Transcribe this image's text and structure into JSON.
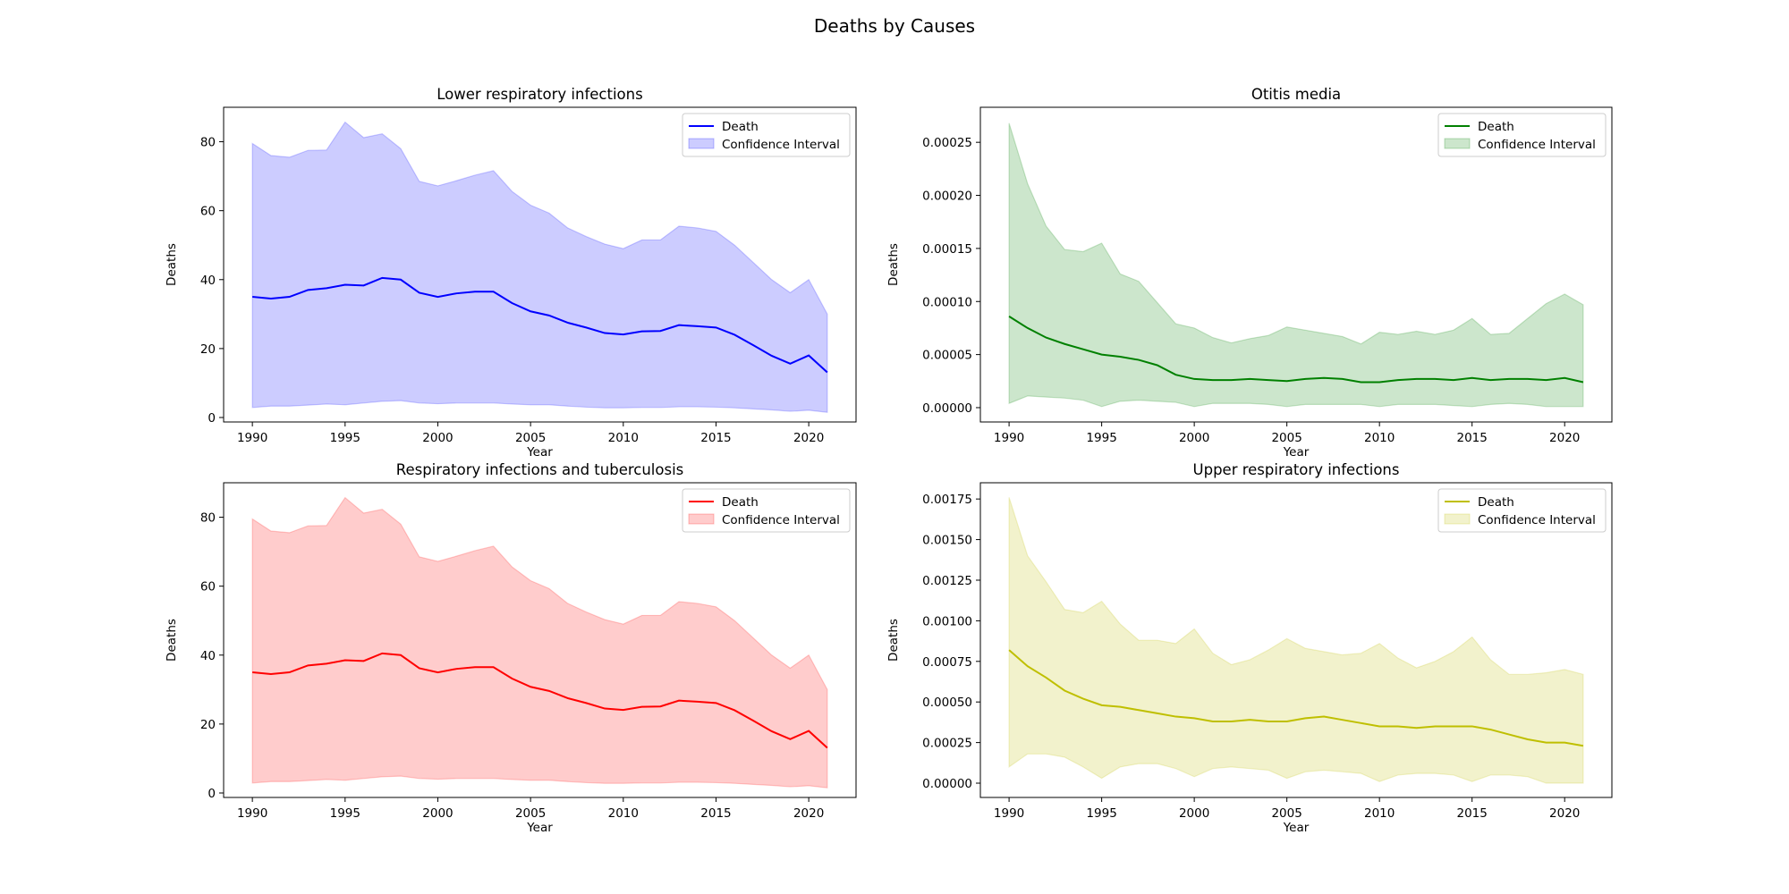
{
  "figure": {
    "title": "Deaths by Causes"
  },
  "chart_data": [
    {
      "type": "line",
      "title": "Lower respiratory infections",
      "xlabel": "Year",
      "ylabel": "Deaths",
      "xlim": [
        1988.45,
        2022.55
      ],
      "ylim": [
        -1.3,
        90
      ],
      "xticks": [
        "1990",
        "1995",
        "2000",
        "2005",
        "2010",
        "2015",
        "2020"
      ],
      "yticks": [
        "0",
        "20",
        "40",
        "60",
        "80"
      ],
      "ytick_values": [
        0,
        20,
        40,
        60,
        80
      ],
      "color": "#0000ff",
      "band_color": "#0000ff",
      "grid": false,
      "legend_position": "top-right",
      "legend": [
        "Death",
        "Confidence Interval"
      ],
      "x": [
        1990,
        1991,
        1992,
        1993,
        1994,
        1995,
        1996,
        1997,
        1998,
        1999,
        2000,
        2001,
        2002,
        2003,
        2004,
        2005,
        2006,
        2007,
        2008,
        2009,
        2010,
        2011,
        2012,
        2013,
        2014,
        2015,
        2016,
        2017,
        2018,
        2019,
        2020,
        2021
      ],
      "series": [
        {
          "name": "Death",
          "values": [
            35,
            34.5,
            35,
            37,
            37.5,
            38.5,
            38.3,
            40.5,
            40,
            36.2,
            35,
            36,
            36.5,
            36.5,
            33.2,
            30.8,
            29.6,
            27.5,
            26.1,
            24.5,
            24.1,
            25,
            25.1,
            26.8,
            26.5,
            26.1,
            24,
            21,
            17.9,
            15.6,
            18,
            13.1
          ]
        },
        {
          "name": "Confidence Interval",
          "lower": [
            2.9,
            3.3,
            3.3,
            3.6,
            3.9,
            3.7,
            4.2,
            4.7,
            4.9,
            4.2,
            4,
            4.2,
            4.2,
            4.2,
            3.9,
            3.7,
            3.7,
            3.3,
            3,
            2.8,
            2.8,
            2.9,
            2.9,
            3.1,
            3.1,
            3,
            2.8,
            2.5,
            2.2,
            1.8,
            2.1,
            1.5
          ],
          "upper": [
            79.5,
            76,
            75.5,
            77.5,
            77.6,
            85.7,
            81.2,
            82.3,
            78,
            68.5,
            67.2,
            68.7,
            70.3,
            71.6,
            65.6,
            61.6,
            59.3,
            55,
            52.5,
            50.3,
            49,
            51.5,
            51.5,
            55.5,
            55,
            54,
            50,
            45,
            40,
            36.2,
            40,
            30
          ]
        }
      ]
    },
    {
      "type": "line",
      "title": "Otitis media",
      "xlabel": "Year",
      "ylabel": "Deaths",
      "xlim": [
        1988.45,
        2022.55
      ],
      "ylim": [
        -1.35e-05,
        0.000283
      ],
      "xticks": [
        "1990",
        "1995",
        "2000",
        "2005",
        "2010",
        "2015",
        "2020"
      ],
      "yticks": [
        "0.00000",
        "0.00005",
        "0.00010",
        "0.00015",
        "0.00020",
        "0.00025"
      ],
      "ytick_values": [
        0,
        5e-05,
        0.0001,
        0.00015,
        0.0002,
        0.00025
      ],
      "color": "#008000",
      "band_color": "#008000",
      "grid": false,
      "legend_position": "top-right",
      "legend": [
        "Death",
        "Confidence Interval"
      ],
      "x": [
        1990,
        1991,
        1992,
        1993,
        1994,
        1995,
        1996,
        1997,
        1998,
        1999,
        2000,
        2001,
        2002,
        2003,
        2004,
        2005,
        2006,
        2007,
        2008,
        2009,
        2010,
        2011,
        2012,
        2013,
        2014,
        2015,
        2016,
        2017,
        2018,
        2019,
        2020,
        2021
      ],
      "series": [
        {
          "name": "Death",
          "values": [
            8.6e-05,
            7.5e-05,
            6.6e-05,
            6e-05,
            5.5e-05,
            5e-05,
            4.8e-05,
            4.5e-05,
            4e-05,
            3.1e-05,
            2.7e-05,
            2.6e-05,
            2.6e-05,
            2.7e-05,
            2.6e-05,
            2.5e-05,
            2.7e-05,
            2.8e-05,
            2.7e-05,
            2.4e-05,
            2.4e-05,
            2.6e-05,
            2.7e-05,
            2.7e-05,
            2.6e-05,
            2.8e-05,
            2.6e-05,
            2.7e-05,
            2.7e-05,
            2.6e-05,
            2.8e-05,
            2.4e-05
          ]
        },
        {
          "name": "Confidence Interval",
          "lower": [
            4e-06,
            1.1e-05,
            1e-05,
            9e-06,
            7e-06,
            1e-06,
            6e-06,
            7e-06,
            6e-06,
            5e-06,
            1e-06,
            4e-06,
            4e-06,
            4e-06,
            3e-06,
            1e-06,
            3e-06,
            3e-06,
            3e-06,
            3e-06,
            1e-06,
            3e-06,
            3e-06,
            3e-06,
            2e-06,
            1e-06,
            3e-06,
            4e-06,
            3e-06,
            1e-06,
            1e-06,
            1e-06
          ],
          "upper": [
            0.000268,
            0.000211,
            0.000171,
            0.000149,
            0.000147,
            0.000155,
            0.000126,
            0.000119,
            9.9e-05,
            7.9e-05,
            7.5e-05,
            6.6e-05,
            6.1e-05,
            6.5e-05,
            6.8e-05,
            7.6e-05,
            7.3e-05,
            7e-05,
            6.7e-05,
            6e-05,
            7.1e-05,
            6.9e-05,
            7.2e-05,
            6.9e-05,
            7.3e-05,
            8.4e-05,
            6.9e-05,
            7e-05,
            8.4e-05,
            9.8e-05,
            0.000107,
            9.7e-05
          ]
        }
      ]
    },
    {
      "type": "line",
      "title": "Respiratory infections and tuberculosis",
      "xlabel": "Year",
      "ylabel": "Deaths",
      "xlim": [
        1988.45,
        2022.55
      ],
      "ylim": [
        -1.3,
        90
      ],
      "xticks": [
        "1990",
        "1995",
        "2000",
        "2005",
        "2010",
        "2015",
        "2020"
      ],
      "yticks": [
        "0",
        "20",
        "40",
        "60",
        "80"
      ],
      "ytick_values": [
        0,
        20,
        40,
        60,
        80
      ],
      "color": "#ff0000",
      "band_color": "#ff0000",
      "grid": false,
      "legend_position": "top-right",
      "legend": [
        "Death",
        "Confidence Interval"
      ],
      "x": [
        1990,
        1991,
        1992,
        1993,
        1994,
        1995,
        1996,
        1997,
        1998,
        1999,
        2000,
        2001,
        2002,
        2003,
        2004,
        2005,
        2006,
        2007,
        2008,
        2009,
        2010,
        2011,
        2012,
        2013,
        2014,
        2015,
        2016,
        2017,
        2018,
        2019,
        2020,
        2021
      ],
      "series": [
        {
          "name": "Death",
          "values": [
            35,
            34.5,
            35,
            37,
            37.5,
            38.5,
            38.3,
            40.5,
            40,
            36.2,
            35,
            36,
            36.5,
            36.5,
            33.2,
            30.8,
            29.6,
            27.5,
            26.1,
            24.5,
            24.1,
            25,
            25.1,
            26.8,
            26.5,
            26.1,
            24,
            21,
            17.9,
            15.6,
            18,
            13.1
          ]
        },
        {
          "name": "Confidence Interval",
          "lower": [
            2.9,
            3.3,
            3.3,
            3.6,
            3.9,
            3.7,
            4.2,
            4.7,
            4.9,
            4.2,
            4,
            4.2,
            4.2,
            4.2,
            3.9,
            3.7,
            3.7,
            3.3,
            3,
            2.8,
            2.8,
            2.9,
            2.9,
            3.1,
            3.1,
            3,
            2.8,
            2.5,
            2.2,
            1.8,
            2.1,
            1.5
          ],
          "upper": [
            79.5,
            76,
            75.5,
            77.5,
            77.6,
            85.7,
            81.2,
            82.3,
            78,
            68.5,
            67.2,
            68.7,
            70.3,
            71.6,
            65.6,
            61.6,
            59.3,
            55,
            52.5,
            50.3,
            49,
            51.5,
            51.5,
            55.5,
            55,
            54,
            50,
            45,
            40,
            36.2,
            40,
            30
          ]
        }
      ]
    },
    {
      "type": "line",
      "title": "Upper respiratory infections",
      "xlabel": "Year",
      "ylabel": "Deaths",
      "xlim": [
        1988.45,
        2022.55
      ],
      "ylim": [
        -8.8e-05,
        0.00185
      ],
      "xticks": [
        "1990",
        "1995",
        "2000",
        "2005",
        "2010",
        "2015",
        "2020"
      ],
      "yticks": [
        "0.00000",
        "0.00025",
        "0.00050",
        "0.00075",
        "0.00100",
        "0.00125",
        "0.00150",
        "0.00175"
      ],
      "ytick_values": [
        0,
        0.00025,
        0.0005,
        0.00075,
        0.001,
        0.00125,
        0.0015,
        0.00175
      ],
      "color": "#bfbf00",
      "band_color": "#bfbf00",
      "grid": false,
      "legend_position": "top-right",
      "legend": [
        "Death",
        "Confidence Interval"
      ],
      "x": [
        1990,
        1991,
        1992,
        1993,
        1994,
        1995,
        1996,
        1997,
        1998,
        1999,
        2000,
        2001,
        2002,
        2003,
        2004,
        2005,
        2006,
        2007,
        2008,
        2009,
        2010,
        2011,
        2012,
        2013,
        2014,
        2015,
        2016,
        2017,
        2018,
        2019,
        2020,
        2021
      ],
      "series": [
        {
          "name": "Death",
          "values": [
            0.00082,
            0.00072,
            0.00065,
            0.00057,
            0.00052,
            0.00048,
            0.00047,
            0.00045,
            0.00043,
            0.00041,
            0.0004,
            0.00038,
            0.00038,
            0.00039,
            0.00038,
            0.00038,
            0.0004,
            0.00041,
            0.00039,
            0.00037,
            0.00035,
            0.00035,
            0.00034,
            0.00035,
            0.00035,
            0.00035,
            0.00033,
            0.0003,
            0.00027,
            0.00025,
            0.00025,
            0.00023
          ]
        },
        {
          "name": "Confidence Interval",
          "lower": [
            0.0001,
            0.00018,
            0.00018,
            0.00016,
            0.0001,
            3e-05,
            0.0001,
            0.00012,
            0.00012,
            9e-05,
            4e-05,
            9e-05,
            0.0001,
            9e-05,
            8e-05,
            3e-05,
            7e-05,
            8e-05,
            7e-05,
            6e-05,
            1e-05,
            5e-05,
            6e-05,
            6e-05,
            5e-05,
            1e-05,
            5e-05,
            5e-05,
            4e-05,
            0.0,
            0.0,
            0.0
          ],
          "upper": [
            0.00176,
            0.0014,
            0.00124,
            0.00107,
            0.00105,
            0.00112,
            0.00098,
            0.00088,
            0.00088,
            0.00086,
            0.00095,
            0.0008,
            0.00073,
            0.00076,
            0.00082,
            0.00089,
            0.00083,
            0.00081,
            0.00079,
            0.0008,
            0.00086,
            0.00077,
            0.00071,
            0.00075,
            0.00081,
            0.0009,
            0.00076,
            0.00067,
            0.00067,
            0.00068,
            0.0007,
            0.00067
          ]
        }
      ]
    }
  ]
}
